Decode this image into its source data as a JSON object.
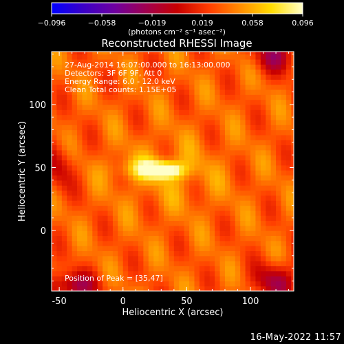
{
  "chart_data": {
    "type": "heatmap",
    "title": "Reconstructed RHESSI Image",
    "xlabel": "Heliocentric X (arcsec)",
    "ylabel": "Heliocentric Y (arcsec)",
    "xlim": [
      -56,
      134
    ],
    "ylim": [
      -48,
      142
    ],
    "xticks": [
      -50,
      0,
      50,
      100
    ],
    "yticks": [
      0,
      50,
      100
    ],
    "colorbar": {
      "range": [
        -0.096,
        0.096
      ],
      "ticks": [
        "−0.096",
        "−0.058",
        "−0.019",
        "0.019",
        "0.058",
        "0.096"
      ],
      "unit_label": "(photons cm⁻² s⁻¹ asec⁻²)",
      "colormap": [
        "#0000ff",
        "#3a00c8",
        "#6e00a0",
        "#a00050",
        "#c80000",
        "#ff3c00",
        "#ff8c00",
        "#ffdc00",
        "#ffffc8"
      ]
    },
    "info_lines": [
      "27-Aug-2014 16:07:00.000 to 16:13:00.000",
      "Detectors: 3F 6F 9F, Att 0",
      "Energy Range: 6.0 - 12.0 keV",
      "Clean    Total counts: 1.15E+05"
    ],
    "peak_label": "Position of Peak = [35,47]",
    "peak": {
      "x": 35,
      "y": 47,
      "value": 0.096
    },
    "image_source": {
      "background_level": 0.035,
      "sources": [
        {
          "x": 33,
          "y": 48,
          "sx": 9,
          "sy": 4,
          "amp": 0.06
        },
        {
          "x": 22,
          "y": 49,
          "sx": 18,
          "sy": 6,
          "amp": 0.04
        },
        {
          "x": 40,
          "y": 44,
          "sx": 30,
          "sy": 22,
          "amp": 0.012
        }
      ],
      "dark_blobs": [
        {
          "x": -40,
          "y": -44,
          "sx": 14,
          "sy": 8,
          "amp": -0.055
        },
        {
          "x": 120,
          "y": -40,
          "sx": 12,
          "sy": 10,
          "amp": -0.05
        },
        {
          "x": 120,
          "y": 140,
          "sx": 12,
          "sy": 10,
          "amp": -0.05
        },
        {
          "x": -50,
          "y": 50,
          "sx": 8,
          "sy": 14,
          "amp": -0.03
        }
      ]
    }
  },
  "footer_date": "16-May-2022 11:57"
}
